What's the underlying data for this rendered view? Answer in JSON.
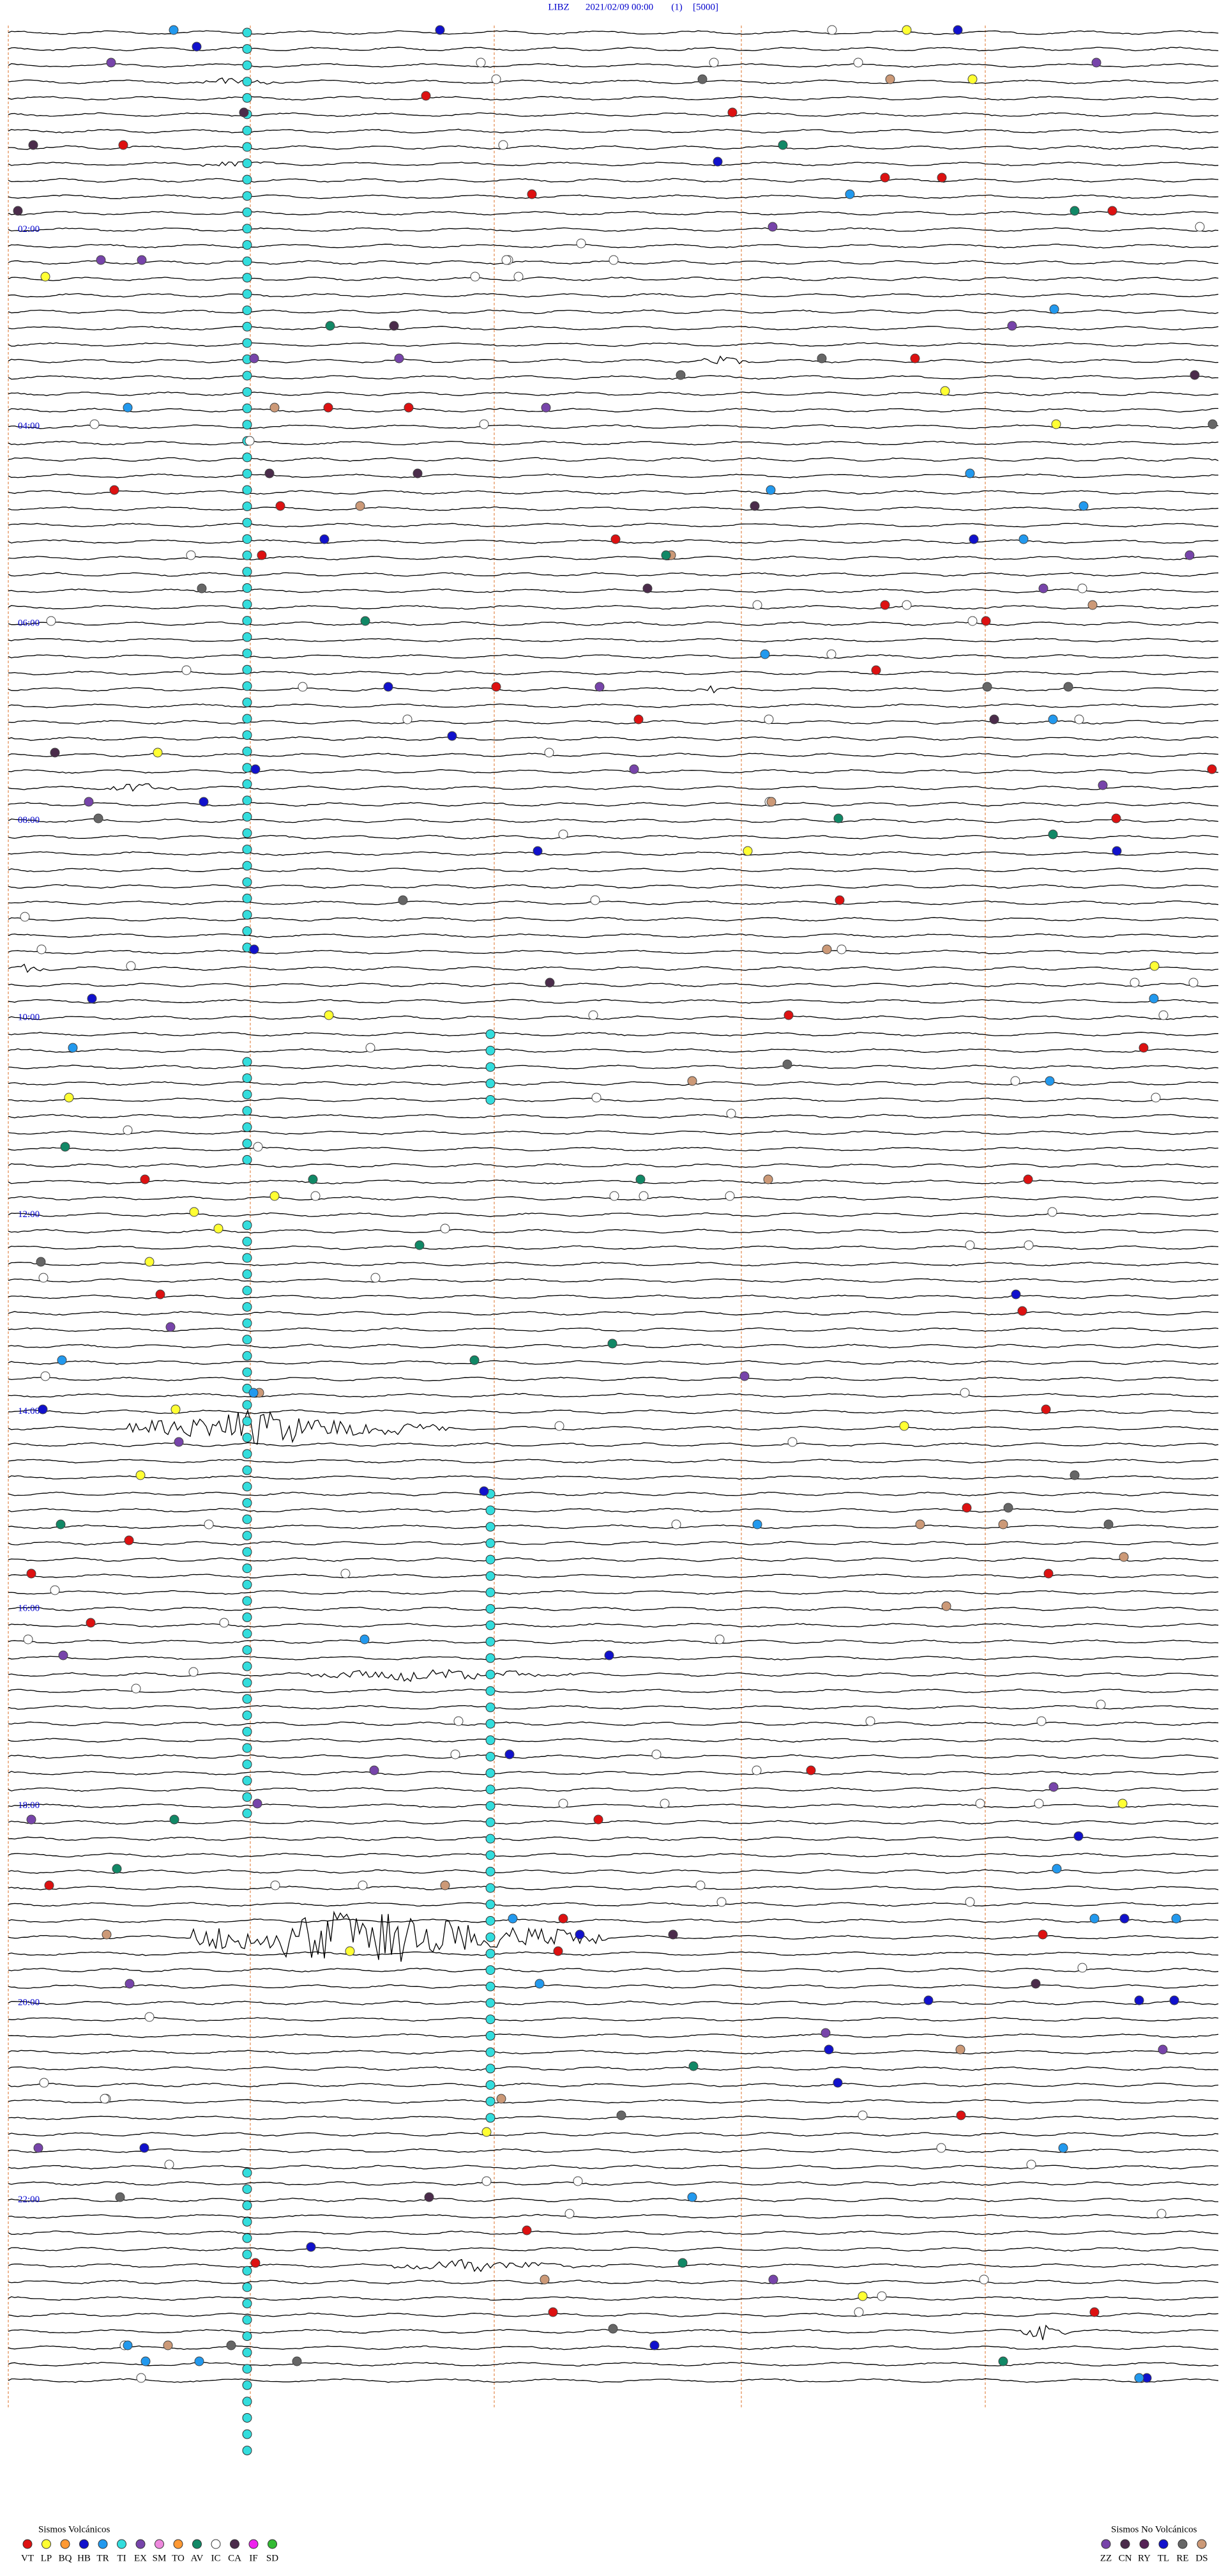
{
  "header": {
    "station": "LIBZ",
    "datetime": "2021/02/09 00:00",
    "channel": "(1)",
    "scale": "[5000]"
  },
  "time_labels": [
    "02:00",
    "04:00",
    "06:00",
    "08:00",
    "10:00",
    "12:00",
    "14:00",
    "16:00",
    "18:00",
    "20:00",
    "22:00"
  ],
  "legend_volcanic": {
    "title": "Sismos Volcánicos",
    "codes": [
      "VT",
      "LP",
      "BQ",
      "HB",
      "TR",
      "TI",
      "EX",
      "SM",
      "TO",
      "AV",
      "IC",
      "CA",
      "IF",
      "SD"
    ]
  },
  "legend_non_volcanic": {
    "title": "Sismos No Volcánicos",
    "codes": [
      "ZZ",
      "CN",
      "RY",
      "TL",
      "RE",
      "DS"
    ]
  }
}
